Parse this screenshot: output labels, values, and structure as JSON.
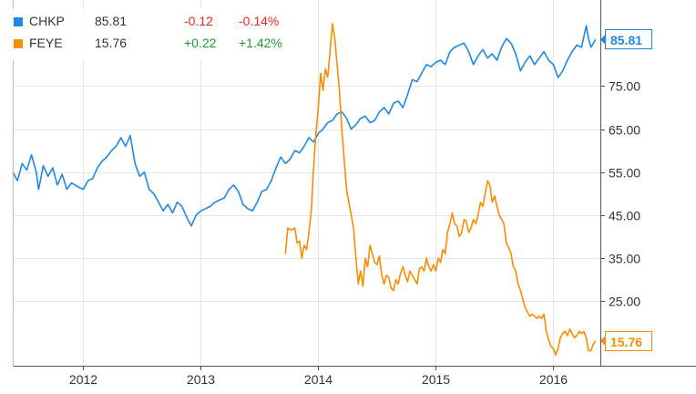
{
  "legend": [
    {
      "ticker": "CHKP",
      "last": "85.81",
      "change": "-0.12",
      "change_pct": "-0.14%",
      "color": "#1e88e5",
      "direction": "neg"
    },
    {
      "ticker": "FEYE",
      "last": "15.76",
      "change": "+0.22",
      "change_pct": "+1.42%",
      "color": "#fb8c00",
      "direction": "pos"
    }
  ],
  "chart_data": {
    "type": "line",
    "x_ticks": [
      "2012",
      "2013",
      "2014",
      "2015",
      "2016"
    ],
    "y_ticks": [
      "75.00",
      "65.00",
      "55.00",
      "45.00",
      "35.00",
      "25.00"
    ],
    "ylim": [
      10,
      95
    ],
    "xlim": [
      2011.4,
      2016.4
    ],
    "grid": true,
    "legend_position": "top-left",
    "last_value_labels": [
      "85.81",
      "15.76"
    ],
    "series": [
      {
        "name": "CHKP",
        "color": "#1e88e5",
        "points": [
          [
            2011.4,
            55.0
          ],
          [
            2011.44,
            53.0
          ],
          [
            2011.48,
            57.0
          ],
          [
            2011.52,
            55.5
          ],
          [
            2011.56,
            59.0
          ],
          [
            2011.6,
            55.0
          ],
          [
            2011.62,
            51.0
          ],
          [
            2011.66,
            56.5
          ],
          [
            2011.7,
            54.0
          ],
          [
            2011.74,
            56.0
          ],
          [
            2011.78,
            52.0
          ],
          [
            2011.82,
            54.5
          ],
          [
            2011.86,
            51.0
          ],
          [
            2011.9,
            52.5
          ],
          [
            2011.96,
            51.5
          ],
          [
            2012.0,
            51.0
          ],
          [
            2012.04,
            53.0
          ],
          [
            2012.08,
            53.5
          ],
          [
            2012.12,
            56.0
          ],
          [
            2012.16,
            57.5
          ],
          [
            2012.2,
            58.5
          ],
          [
            2012.24,
            60.0
          ],
          [
            2012.28,
            61.0
          ],
          [
            2012.32,
            63.0
          ],
          [
            2012.36,
            61.0
          ],
          [
            2012.4,
            63.5
          ],
          [
            2012.44,
            57.0
          ],
          [
            2012.48,
            54.0
          ],
          [
            2012.52,
            55.0
          ],
          [
            2012.56,
            51.0
          ],
          [
            2012.6,
            50.0
          ],
          [
            2012.64,
            48.0
          ],
          [
            2012.68,
            46.0
          ],
          [
            2012.72,
            47.5
          ],
          [
            2012.76,
            45.5
          ],
          [
            2012.8,
            48.0
          ],
          [
            2012.84,
            47.0
          ],
          [
            2012.88,
            44.5
          ],
          [
            2012.92,
            42.5
          ],
          [
            2012.96,
            45.0
          ],
          [
            2013.0,
            46.0
          ],
          [
            2013.04,
            46.5
          ],
          [
            2013.08,
            47.0
          ],
          [
            2013.12,
            48.0
          ],
          [
            2013.16,
            48.5
          ],
          [
            2013.2,
            49.0
          ],
          [
            2013.24,
            51.0
          ],
          [
            2013.28,
            52.0
          ],
          [
            2013.32,
            50.5
          ],
          [
            2013.36,
            47.5
          ],
          [
            2013.4,
            46.5
          ],
          [
            2013.44,
            46.0
          ],
          [
            2013.48,
            48.0
          ],
          [
            2013.52,
            50.5
          ],
          [
            2013.56,
            51.0
          ],
          [
            2013.6,
            53.0
          ],
          [
            2013.64,
            56.0
          ],
          [
            2013.68,
            58.5
          ],
          [
            2013.72,
            57.0
          ],
          [
            2013.76,
            58.0
          ],
          [
            2013.8,
            60.0
          ],
          [
            2013.84,
            59.5
          ],
          [
            2013.88,
            61.0
          ],
          [
            2013.92,
            63.0
          ],
          [
            2013.96,
            62.0
          ],
          [
            2014.0,
            64.0
          ],
          [
            2014.04,
            65.0
          ],
          [
            2014.08,
            66.5
          ],
          [
            2014.12,
            67.0
          ],
          [
            2014.16,
            68.5
          ],
          [
            2014.2,
            69.0
          ],
          [
            2014.24,
            67.5
          ],
          [
            2014.28,
            65.0
          ],
          [
            2014.32,
            66.0
          ],
          [
            2014.36,
            67.5
          ],
          [
            2014.4,
            68.0
          ],
          [
            2014.44,
            66.5
          ],
          [
            2014.48,
            67.0
          ],
          [
            2014.52,
            69.0
          ],
          [
            2014.56,
            70.0
          ],
          [
            2014.6,
            68.5
          ],
          [
            2014.64,
            71.0
          ],
          [
            2014.68,
            71.5
          ],
          [
            2014.72,
            70.0
          ],
          [
            2014.76,
            73.0
          ],
          [
            2014.8,
            76.5
          ],
          [
            2014.84,
            76.0
          ],
          [
            2014.88,
            78.0
          ],
          [
            2014.92,
            80.0
          ],
          [
            2014.96,
            79.5
          ],
          [
            2015.0,
            80.5
          ],
          [
            2015.04,
            81.0
          ],
          [
            2015.08,
            80.0
          ],
          [
            2015.12,
            83.0
          ],
          [
            2015.16,
            84.0
          ],
          [
            2015.2,
            84.5
          ],
          [
            2015.24,
            85.0
          ],
          [
            2015.28,
            83.0
          ],
          [
            2015.32,
            80.0
          ],
          [
            2015.36,
            82.0
          ],
          [
            2015.4,
            83.5
          ],
          [
            2015.44,
            81.5
          ],
          [
            2015.48,
            82.5
          ],
          [
            2015.52,
            81.0
          ],
          [
            2015.56,
            84.0
          ],
          [
            2015.6,
            86.0
          ],
          [
            2015.64,
            85.0
          ],
          [
            2015.68,
            82.5
          ],
          [
            2015.72,
            78.5
          ],
          [
            2015.76,
            80.5
          ],
          [
            2015.8,
            82.0
          ],
          [
            2015.84,
            80.0
          ],
          [
            2015.88,
            81.5
          ],
          [
            2015.92,
            83.0
          ],
          [
            2015.96,
            81.0
          ],
          [
            2016.0,
            80.0
          ],
          [
            2016.04,
            77.0
          ],
          [
            2016.08,
            78.5
          ],
          [
            2016.12,
            81.0
          ],
          [
            2016.16,
            83.0
          ],
          [
            2016.2,
            84.5
          ],
          [
            2016.24,
            84.0
          ],
          [
            2016.28,
            89.0
          ],
          [
            2016.3,
            86.0
          ],
          [
            2016.32,
            84.0
          ],
          [
            2016.36,
            85.81
          ]
        ]
      },
      {
        "name": "FEYE",
        "color": "#fb8c00",
        "points": [
          [
            2013.72,
            36.0
          ],
          [
            2013.74,
            42.0
          ],
          [
            2013.77,
            41.5
          ],
          [
            2013.8,
            42.0
          ],
          [
            2013.82,
            38.5
          ],
          [
            2013.84,
            39.0
          ],
          [
            2013.86,
            35.0
          ],
          [
            2013.88,
            38.0
          ],
          [
            2013.9,
            37.0
          ],
          [
            2013.92,
            41.0
          ],
          [
            2013.94,
            46.0
          ],
          [
            2013.96,
            56.0
          ],
          [
            2013.98,
            64.0
          ],
          [
            2014.0,
            70.0
          ],
          [
            2014.02,
            78.0
          ],
          [
            2014.04,
            74.0
          ],
          [
            2014.06,
            79.0
          ],
          [
            2014.08,
            77.0
          ],
          [
            2014.1,
            83.0
          ],
          [
            2014.12,
            89.5
          ],
          [
            2014.14,
            86.0
          ],
          [
            2014.16,
            80.0
          ],
          [
            2014.18,
            74.0
          ],
          [
            2014.2,
            65.0
          ],
          [
            2014.22,
            58.0
          ],
          [
            2014.24,
            51.0
          ],
          [
            2014.26,
            48.0
          ],
          [
            2014.28,
            45.0
          ],
          [
            2014.3,
            42.0
          ],
          [
            2014.32,
            35.0
          ],
          [
            2014.34,
            29.0
          ],
          [
            2014.36,
            32.0
          ],
          [
            2014.38,
            28.5
          ],
          [
            2014.4,
            35.0
          ],
          [
            2014.42,
            33.0
          ],
          [
            2014.44,
            38.0
          ],
          [
            2014.46,
            36.0
          ],
          [
            2014.48,
            34.0
          ],
          [
            2014.5,
            33.5
          ],
          [
            2014.52,
            35.5
          ],
          [
            2014.54,
            31.0
          ],
          [
            2014.56,
            29.0
          ],
          [
            2014.58,
            31.0
          ],
          [
            2014.6,
            30.5
          ],
          [
            2014.62,
            28.0
          ],
          [
            2014.64,
            27.5
          ],
          [
            2014.66,
            30.0
          ],
          [
            2014.68,
            29.0
          ],
          [
            2014.7,
            31.5
          ],
          [
            2014.72,
            33.0
          ],
          [
            2014.74,
            31.0
          ],
          [
            2014.76,
            29.5
          ],
          [
            2014.78,
            32.0
          ],
          [
            2014.8,
            31.0
          ],
          [
            2014.82,
            30.0
          ],
          [
            2014.84,
            29.0
          ],
          [
            2014.86,
            32.5
          ],
          [
            2014.88,
            33.0
          ],
          [
            2014.9,
            32.0
          ],
          [
            2014.92,
            35.0
          ],
          [
            2014.94,
            33.0
          ],
          [
            2014.96,
            32.0
          ],
          [
            2014.98,
            33.5
          ],
          [
            2015.0,
            32.0
          ],
          [
            2015.02,
            35.0
          ],
          [
            2015.04,
            34.0
          ],
          [
            2015.06,
            37.0
          ],
          [
            2015.08,
            36.0
          ],
          [
            2015.1,
            41.0
          ],
          [
            2015.12,
            43.0
          ],
          [
            2015.14,
            45.5
          ],
          [
            2015.16,
            43.0
          ],
          [
            2015.18,
            42.5
          ],
          [
            2015.2,
            40.0
          ],
          [
            2015.22,
            41.0
          ],
          [
            2015.24,
            44.0
          ],
          [
            2015.26,
            43.5
          ],
          [
            2015.28,
            41.0
          ],
          [
            2015.3,
            42.0
          ],
          [
            2015.32,
            44.0
          ],
          [
            2015.34,
            43.0
          ],
          [
            2015.36,
            45.0
          ],
          [
            2015.38,
            48.0
          ],
          [
            2015.4,
            47.0
          ],
          [
            2015.42,
            50.0
          ],
          [
            2015.44,
            53.0
          ],
          [
            2015.46,
            52.0
          ],
          [
            2015.48,
            48.0
          ],
          [
            2015.5,
            49.5
          ],
          [
            2015.52,
            47.0
          ],
          [
            2015.54,
            45.0
          ],
          [
            2015.56,
            44.0
          ],
          [
            2015.58,
            43.0
          ],
          [
            2015.6,
            38.5
          ],
          [
            2015.62,
            37.5
          ],
          [
            2015.64,
            36.0
          ],
          [
            2015.66,
            33.0
          ],
          [
            2015.68,
            32.0
          ],
          [
            2015.7,
            29.0
          ],
          [
            2015.72,
            27.5
          ],
          [
            2015.74,
            25.5
          ],
          [
            2015.76,
            23.5
          ],
          [
            2015.78,
            22.5
          ],
          [
            2015.8,
            21.5
          ],
          [
            2015.82,
            22.0
          ],
          [
            2015.84,
            21.5
          ],
          [
            2015.86,
            21.0
          ],
          [
            2015.88,
            21.5
          ],
          [
            2015.9,
            21.0
          ],
          [
            2015.92,
            22.0
          ],
          [
            2015.94,
            18.0
          ],
          [
            2015.96,
            16.0
          ],
          [
            2015.98,
            14.5
          ],
          [
            2016.0,
            14.0
          ],
          [
            2016.02,
            12.5
          ],
          [
            2016.04,
            14.0
          ],
          [
            2016.06,
            16.5
          ],
          [
            2016.08,
            17.5
          ],
          [
            2016.1,
            18.0
          ],
          [
            2016.12,
            17.0
          ],
          [
            2016.14,
            18.5
          ],
          [
            2016.16,
            17.5
          ],
          [
            2016.18,
            16.5
          ],
          [
            2016.2,
            17.0
          ],
          [
            2016.22,
            18.0
          ],
          [
            2016.24,
            17.5
          ],
          [
            2016.26,
            18.0
          ],
          [
            2016.28,
            16.5
          ],
          [
            2016.3,
            13.5
          ],
          [
            2016.32,
            13.5
          ],
          [
            2016.34,
            15.0
          ],
          [
            2016.36,
            15.76
          ]
        ]
      }
    ]
  }
}
